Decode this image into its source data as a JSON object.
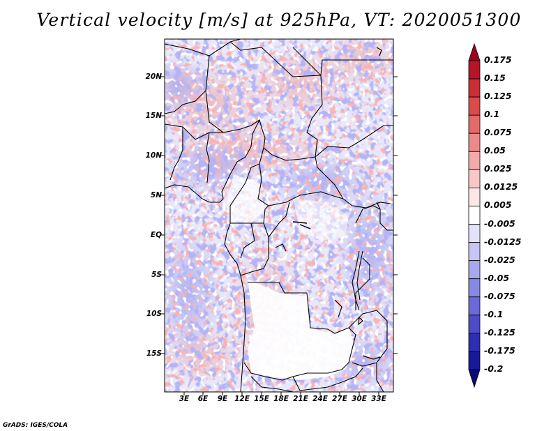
{
  "title": "Vertical velocity [m/s] at 925hPa, VT: 2020051300",
  "credit": "GrADS: IGES/COLA",
  "lat_labels": [
    "20N",
    "15N",
    "10N",
    "5N",
    "EQ",
    "5S",
    "10S",
    "15S"
  ],
  "lon_labels": [
    "3E",
    "6E",
    "9E",
    "12E",
    "15E",
    "18E",
    "21E",
    "24E",
    "27E",
    "30E",
    "33E"
  ],
  "colorbar": {
    "levels": [
      "0.175",
      "0.15",
      "0.125",
      "0.1",
      "0.075",
      "0.05",
      "0.025",
      "0.0125",
      "0.005",
      "-0.005",
      "-0.0125",
      "-0.025",
      "-0.05",
      "-0.075",
      "-0.1",
      "-0.125",
      "-0.175",
      "-0.2"
    ],
    "colors": [
      "#a0001e",
      "#b81428",
      "#cc2e36",
      "#dc4a4a",
      "#e46a6a",
      "#ec8a8a",
      "#f4aaaa",
      "#f8c8c8",
      "#fce6e6",
      "#ffffff",
      "#e2e2fa",
      "#c6c6f4",
      "#a8a8ee",
      "#8888e6",
      "#6a6ad8",
      "#4c4cc8",
      "#2e2eb4",
      "#18189c",
      "#0a0a78"
    ]
  }
}
